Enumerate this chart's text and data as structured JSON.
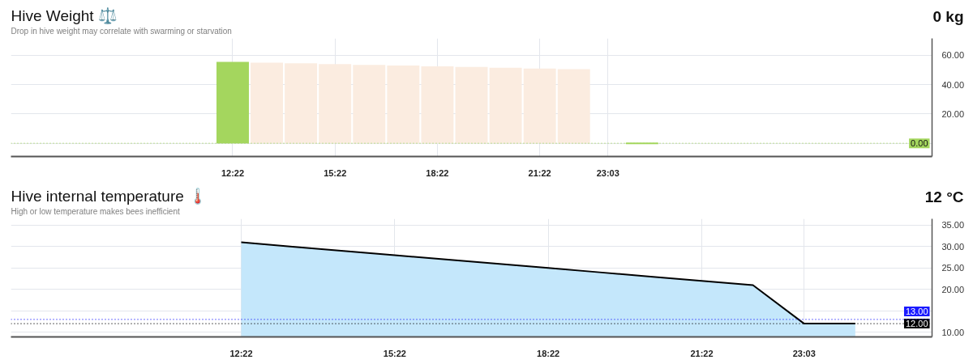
{
  "chart_data": [
    {
      "type": "bar",
      "title": "Hive Weight ⚖️",
      "subtitle": "Drop in hive weight may correlate with swarming or starvation",
      "annotations": [
        "0 kg"
      ],
      "categories": [
        null,
        null,
        null,
        null,
        null,
        null,
        "12:22",
        null,
        null,
        "15:22",
        null,
        null,
        "18:22",
        null,
        null,
        "21:22",
        null,
        "23:03",
        null,
        null,
        null,
        null,
        null,
        null,
        null,
        null,
        null
      ],
      "values": [
        null,
        null,
        null,
        null,
        null,
        null,
        55.5,
        55,
        54.5,
        54,
        53.5,
        53,
        52.5,
        52,
        51.5,
        51,
        50.5,
        null,
        0,
        null,
        null,
        null,
        null,
        null,
        null,
        null,
        null
      ],
      "colors": [
        null,
        null,
        null,
        null,
        null,
        null,
        "#a4d65e",
        "#fbece0",
        "#fbece0",
        "#fbece0",
        "#fbece0",
        "#fbece0",
        "#fbece0",
        "#fbece0",
        "#fbece0",
        "#fbece0",
        "#fbece0",
        null,
        "#a4d65e",
        null,
        null,
        null,
        null,
        null,
        null,
        null,
        null
      ],
      "ylim": [
        -9,
        71.5
      ],
      "yticks": [
        {
          "value": 0,
          "label": null
        },
        {
          "value": 20,
          "label": "20.00"
        },
        {
          "value": 40,
          "label": "40.00"
        },
        {
          "value": 60,
          "label": "60.00"
        }
      ],
      "grid": true,
      "ref_lines": [
        {
          "axis": "y",
          "value": 0,
          "label": "0.00",
          "color": "#a4d65e",
          "line_style": "dotted"
        }
      ]
    },
    {
      "type": "area",
      "title": "Hive internal temperature 🌡️",
      "subtitle": "High or low temperature makes bees inefficient",
      "annotations": [
        "12 °C"
      ],
      "categories": [
        null,
        null,
        null,
        null,
        "12:22",
        null,
        null,
        "15:22",
        null,
        null,
        "18:22",
        null,
        null,
        "21:22",
        null,
        "23:03",
        null,
        null
      ],
      "series": [
        {
          "color": "#c4e7fb",
          "values": [
            null,
            null,
            null,
            null,
            31,
            30,
            29,
            28,
            27,
            26,
            25,
            24,
            23,
            22,
            21,
            12,
            12,
            null
          ]
        }
      ],
      "ylim": [
        8.9,
        36.5
      ],
      "yticks": [
        {
          "value": 10,
          "label": "10.00"
        },
        {
          "value": 15,
          "label": null
        },
        {
          "value": 20,
          "label": "20.00"
        },
        {
          "value": 25,
          "label": "25.00"
        },
        {
          "value": 30,
          "label": "30.00"
        },
        {
          "value": 35,
          "label": "35.00"
        }
      ],
      "grid": true,
      "ref_lines": [
        {
          "axis": "y",
          "value": 13,
          "label": "13.00",
          "color": "#1a1aff",
          "line_style": "dotted"
        },
        {
          "axis": "y",
          "value": 12,
          "label": "12.00",
          "color": "#000000",
          "line_style": "dotted"
        }
      ]
    }
  ]
}
